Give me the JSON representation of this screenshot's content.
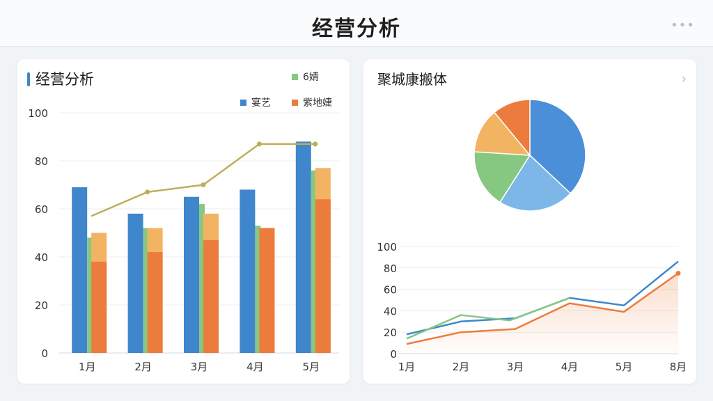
{
  "header": {
    "title": "经营分析",
    "more_icon": "more-dots-icon"
  },
  "left_panel": {
    "title": "经营分析"
  },
  "right_panel": {
    "title": "聚城康搬体",
    "chevron_icon": "chevron-right-icon"
  },
  "colors": {
    "blue": "#3f86cd",
    "green": "#86c881",
    "orange": "#ec7c3d",
    "orange_light": "#f2b462",
    "line": "#bfae57",
    "pie_blue": "#4a8fd7",
    "pie_lightblue": "#7db7e8",
    "pie_green": "#86c881",
    "pie_yellow": "#f2b462",
    "pie_orange": "#ec7c3d"
  },
  "chart_data": [
    {
      "type": "bar",
      "categories": [
        "1月",
        "2月",
        "3月",
        "4月",
        "5月"
      ],
      "ylim": [
        0,
        100
      ],
      "yticks": [
        0,
        20,
        40,
        60,
        80,
        100
      ],
      "legend": {
        "placement": "top-right"
      },
      "series": [
        {
          "name": "宴艺",
          "type": "bar",
          "values": [
            69,
            58,
            65,
            68,
            88
          ]
        },
        {
          "name": "6婧",
          "type": "bar",
          "values": [
            48,
            52,
            62,
            53,
            76
          ]
        },
        {
          "name": "紫地婕",
          "type": "bar",
          "values": [
            38,
            42,
            47,
            52,
            64
          ]
        },
        {
          "name": "",
          "type": "bar-cap",
          "values": [
            50,
            52,
            58,
            52,
            77
          ]
        },
        {
          "name": "",
          "type": "line",
          "values": [
            57,
            67,
            70,
            87,
            87
          ]
        }
      ]
    },
    {
      "type": "pie",
      "slices": [
        {
          "value": 37
        },
        {
          "value": 22
        },
        {
          "value": 17
        },
        {
          "value": 13
        },
        {
          "value": 11
        }
      ]
    },
    {
      "type": "line",
      "x": [
        "1月",
        "2月",
        "3月",
        "4月",
        "5月",
        "8月"
      ],
      "ylim": [
        0,
        100
      ],
      "yticks": [
        0,
        20,
        40,
        60,
        80,
        100
      ],
      "series": [
        {
          "name": "",
          "points": [
            [
              0,
              18
            ],
            [
              1,
              30
            ],
            [
              2,
              33
            ],
            [
              3,
              52
            ],
            [
              4,
              45
            ],
            [
              5,
              86
            ]
          ]
        },
        {
          "name": "",
          "points": [
            [
              0,
              14
            ],
            [
              1,
              36
            ],
            [
              1.9,
              31
            ],
            [
              3,
              52
            ]
          ]
        },
        {
          "name": "",
          "points": [
            [
              0,
              9
            ],
            [
              1,
              20
            ],
            [
              2,
              23
            ],
            [
              3,
              47
            ],
            [
              4,
              39
            ],
            [
              5,
              75
            ]
          ]
        }
      ]
    }
  ]
}
